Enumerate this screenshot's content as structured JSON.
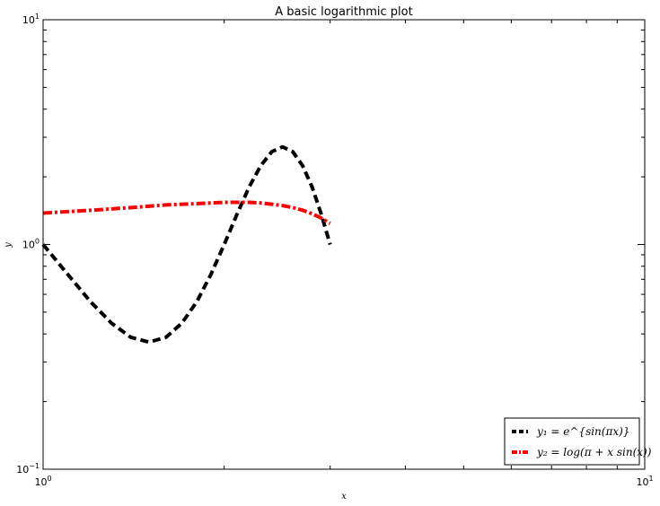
{
  "chart_data": {
    "type": "line",
    "title": "A basic logarithmic plot",
    "xlabel": "x",
    "ylabel": "y",
    "xscale": "log",
    "yscale": "log",
    "xlim": [
      1,
      10
    ],
    "ylim": [
      0.1,
      10
    ],
    "x_ticks": [
      {
        "value": 1,
        "base": "10",
        "exp": "0"
      },
      {
        "value": 10,
        "base": "10",
        "exp": "1"
      }
    ],
    "y_ticks": [
      {
        "value": 0.1,
        "base": "10",
        "exp": "−1"
      },
      {
        "value": 1,
        "base": "10",
        "exp": "0"
      },
      {
        "value": 10,
        "base": "10",
        "exp": "1"
      }
    ],
    "grid": false,
    "legend_position": "lower-right",
    "series": [
      {
        "name": "y₁ = e^{sin(πx)}",
        "color": "#000000",
        "style": "dashed",
        "x": [
          1.0,
          1.1,
          1.2,
          1.3,
          1.4,
          1.5,
          1.6,
          1.7,
          1.8,
          1.9,
          2.0,
          2.1,
          2.2,
          2.3,
          2.4,
          2.5,
          2.6,
          2.7,
          2.8,
          2.9,
          3.0
        ],
        "y": [
          1.0,
          0.734,
          0.555,
          0.446,
          0.386,
          0.368,
          0.386,
          0.446,
          0.555,
          0.734,
          1.0,
          1.362,
          1.801,
          2.241,
          2.588,
          2.718,
          2.588,
          2.241,
          1.801,
          1.362,
          1.0
        ]
      },
      {
        "name": "y₂ = log(π + x sin(x))",
        "color": "#ff0000",
        "style": "dashdot",
        "x": [
          1.0,
          1.1,
          1.2,
          1.3,
          1.4,
          1.5,
          1.6,
          1.7,
          1.8,
          1.9,
          2.0,
          2.1,
          2.2,
          2.3,
          2.4,
          2.5,
          2.6,
          2.7,
          2.8,
          2.9,
          3.0
        ],
        "y": [
          1.38,
          1.4,
          1.42,
          1.44,
          1.46,
          1.48,
          1.5,
          1.51,
          1.52,
          1.53,
          1.54,
          1.54,
          1.54,
          1.53,
          1.51,
          1.49,
          1.46,
          1.42,
          1.37,
          1.31,
          1.24
        ]
      }
    ]
  }
}
